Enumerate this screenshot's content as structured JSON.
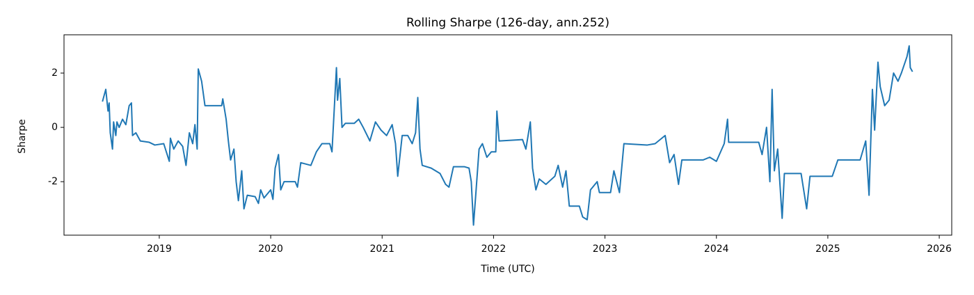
{
  "chart_data": {
    "type": "line",
    "title": "Rolling Sharpe (126-day, ann.252)",
    "x_label": "Time (UTC)",
    "y_label": "Sharpe",
    "xlim": [
      2018.145,
      2026.112
    ],
    "ylim": [
      -3.97,
      3.41
    ],
    "xticks": [
      2019,
      2020,
      2021,
      2022,
      2023,
      2024,
      2025,
      2026
    ],
    "yticks": [
      -2,
      0,
      2
    ],
    "x": [
      2018.49,
      2018.52,
      2018.54,
      2018.55,
      2018.56,
      2018.58,
      2018.59,
      2018.61,
      2018.62,
      2018.64,
      2018.67,
      2018.7,
      2018.73,
      2018.75,
      2018.76,
      2018.79,
      2018.83,
      2018.91,
      2018.96,
      2019.04,
      2019.09,
      2019.1,
      2019.13,
      2019.17,
      2019.21,
      2019.24,
      2019.27,
      2019.3,
      2019.32,
      2019.34,
      2019.35,
      2019.38,
      2019.41,
      2019.56,
      2019.57,
      2019.6,
      2019.62,
      2019.64,
      2019.67,
      2019.69,
      2019.71,
      2019.74,
      2019.76,
      2019.79,
      2019.86,
      2019.89,
      2019.91,
      2019.94,
      2020.0,
      2020.02,
      2020.04,
      2020.07,
      2020.09,
      2020.12,
      2020.22,
      2020.24,
      2020.27,
      2020.36,
      2020.41,
      2020.46,
      2020.53,
      2020.55,
      2020.59,
      2020.6,
      2020.62,
      2020.64,
      2020.67,
      2020.75,
      2020.79,
      2020.83,
      2020.89,
      2020.94,
      2020.99,
      2021.04,
      2021.09,
      2021.12,
      2021.14,
      2021.18,
      2021.23,
      2021.27,
      2021.3,
      2021.32,
      2021.34,
      2021.36,
      2021.44,
      2021.52,
      2021.57,
      2021.6,
      2021.64,
      2021.74,
      2021.78,
      2021.8,
      2021.82,
      2021.84,
      2021.87,
      2021.9,
      2021.94,
      2021.98,
      2022.02,
      2022.03,
      2022.05,
      2022.26,
      2022.29,
      2022.33,
      2022.35,
      2022.38,
      2022.41,
      2022.47,
      2022.55,
      2022.58,
      2022.62,
      2022.65,
      2022.68,
      2022.77,
      2022.8,
      2022.84,
      2022.87,
      2022.93,
      2022.95,
      2023.05,
      2023.08,
      2023.13,
      2023.17,
      2023.38,
      2023.45,
      2023.54,
      2023.58,
      2023.62,
      2023.66,
      2023.69,
      2023.88,
      2023.94,
      2024.0,
      2024.07,
      2024.1,
      2024.11,
      2024.38,
      2024.41,
      2024.45,
      2024.48,
      2024.5,
      2024.52,
      2024.55,
      2024.59,
      2024.61,
      2024.76,
      2024.81,
      2024.84,
      2025.04,
      2025.09,
      2025.29,
      2025.34,
      2025.37,
      2025.4,
      2025.42,
      2025.45,
      2025.47,
      2025.51,
      2025.55,
      2025.59,
      2025.63,
      2025.66,
      2025.71,
      2025.73,
      2025.74,
      2025.76
    ],
    "series": [
      {
        "name": "Sharpe",
        "color": "#1f77b4",
        "values": [
          0.95,
          1.4,
          0.6,
          0.9,
          -0.2,
          -0.8,
          0.2,
          -0.3,
          0.2,
          0.0,
          0.3,
          0.1,
          0.8,
          0.9,
          -0.3,
          -0.2,
          -0.5,
          -0.55,
          -0.65,
          -0.6,
          -1.25,
          -0.4,
          -0.8,
          -0.5,
          -0.7,
          -1.4,
          -0.2,
          -0.6,
          0.1,
          -0.8,
          2.15,
          1.7,
          0.8,
          0.8,
          1.05,
          0.3,
          -0.5,
          -1.2,
          -0.8,
          -2.0,
          -2.7,
          -1.6,
          -3.0,
          -2.5,
          -2.55,
          -2.8,
          -2.3,
          -2.6,
          -2.3,
          -2.65,
          -1.5,
          -1.0,
          -2.3,
          -2.0,
          -2.0,
          -2.2,
          -1.3,
          -1.4,
          -0.9,
          -0.6,
          -0.6,
          -0.9,
          2.2,
          1.0,
          1.8,
          0.0,
          0.15,
          0.15,
          0.3,
          0.0,
          -0.5,
          0.2,
          -0.1,
          -0.3,
          0.1,
          -0.6,
          -1.8,
          -0.3,
          -0.3,
          -0.6,
          -0.2,
          1.1,
          -0.8,
          -1.4,
          -1.5,
          -1.7,
          -2.1,
          -2.2,
          -1.45,
          -1.45,
          -1.5,
          -2.0,
          -3.6,
          -2.5,
          -0.8,
          -0.6,
          -1.1,
          -0.9,
          -0.9,
          0.6,
          -0.5,
          -0.45,
          -0.8,
          0.2,
          -1.5,
          -2.3,
          -1.9,
          -2.1,
          -1.8,
          -1.4,
          -2.2,
          -1.6,
          -2.9,
          -2.9,
          -3.3,
          -3.4,
          -2.3,
          -2.0,
          -2.4,
          -2.4,
          -1.6,
          -2.4,
          -0.6,
          -0.65,
          -0.6,
          -0.3,
          -1.3,
          -1.0,
          -2.1,
          -1.2,
          -1.2,
          -1.1,
          -1.25,
          -0.6,
          0.3,
          -0.55,
          -0.55,
          -1.0,
          0.0,
          -2.0,
          1.4,
          -1.6,
          -0.8,
          -3.35,
          -1.7,
          -1.7,
          -3.0,
          -1.8,
          -1.8,
          -1.2,
          -1.2,
          -0.5,
          -2.5,
          1.4,
          -0.1,
          2.4,
          1.5,
          0.8,
          1.0,
          2.0,
          1.7,
          2.0,
          2.6,
          3.0,
          2.2,
          2.05
        ]
      }
    ]
  }
}
